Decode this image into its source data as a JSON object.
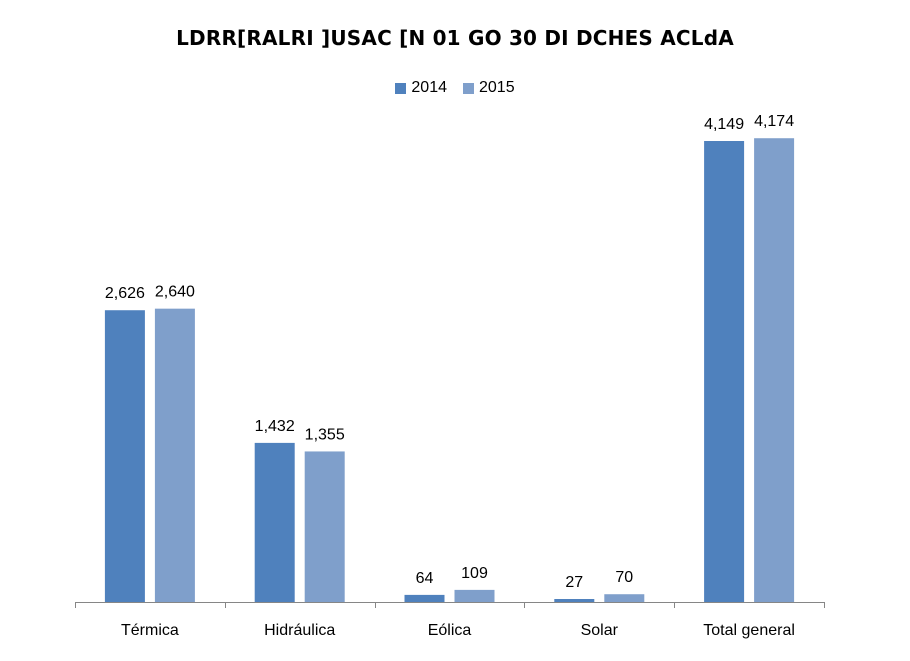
{
  "chart_data": {
    "type": "bar",
    "title": "LDRR[RALRI ]USAC [N 01 GO 30 DI DCHES ACLdA",
    "categories": [
      "Térmica",
      "Hidráulica",
      "Eólica",
      "Solar",
      "Total general"
    ],
    "series": [
      {
        "name": "2014",
        "color": "#4F81BD",
        "values": [
          2626,
          1432,
          64,
          27,
          4149
        ]
      },
      {
        "name": "2015",
        "color": "#7F9FCB",
        "values": [
          2640,
          1355,
          109,
          70,
          4174
        ]
      }
    ],
    "data_labels": [
      [
        "2,626",
        "1,432",
        "64",
        "27",
        "4,149"
      ],
      [
        "2,640",
        "1,355",
        "109",
        "70",
        "4,174"
      ]
    ],
    "ylim": [
      0,
      4500
    ],
    "legend_position": "top",
    "grid": false
  }
}
